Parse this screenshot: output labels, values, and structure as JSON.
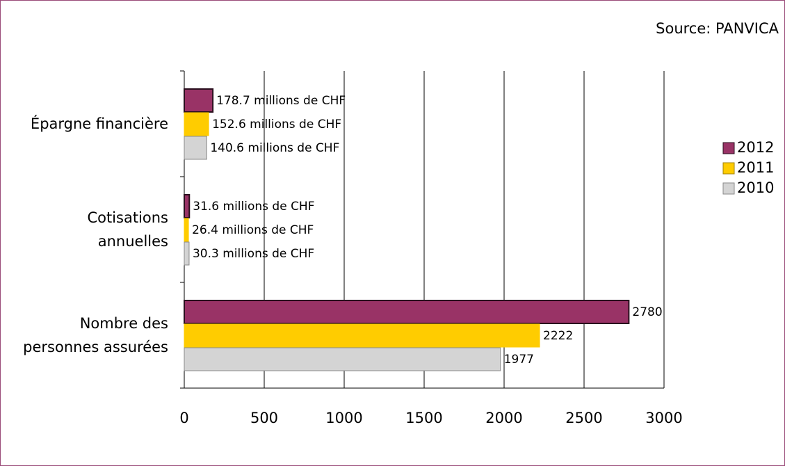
{
  "chart_data": {
    "type": "barh",
    "source": "Source: PANVICA",
    "categories": [
      [
        "Épargne financière"
      ],
      [
        "Cotisations",
        "annuelles"
      ],
      [
        "Nombre des",
        "personnes assurées"
      ]
    ],
    "series": [
      {
        "name": "2012",
        "color": "#993366",
        "edge": "#2a0f1e",
        "values": [
          178.7,
          31.6,
          2780
        ],
        "value_labels": [
          "178.7 millions de CHF",
          "31.6 millions de CHF",
          "2780"
        ]
      },
      {
        "name": "2011",
        "color": "#ffcc00",
        "edge": "#ffcc00",
        "values": [
          152.6,
          26.4,
          2222
        ],
        "value_labels": [
          "152.6 millions de CHF",
          "26.4 millions de CHF",
          "2222"
        ]
      },
      {
        "name": "2010",
        "color": "#d4d4d4",
        "edge": "#8a8a8a",
        "values": [
          140.6,
          30.3,
          1977
        ],
        "value_labels": [
          "140.6 millions de CHF",
          "30.3 millions de CHF",
          "1977"
        ]
      }
    ],
    "xlim": [
      0,
      3000
    ],
    "xticks": [
      0,
      500,
      1000,
      1500,
      2000,
      2500,
      3000
    ],
    "grid": true,
    "legend": "right"
  }
}
